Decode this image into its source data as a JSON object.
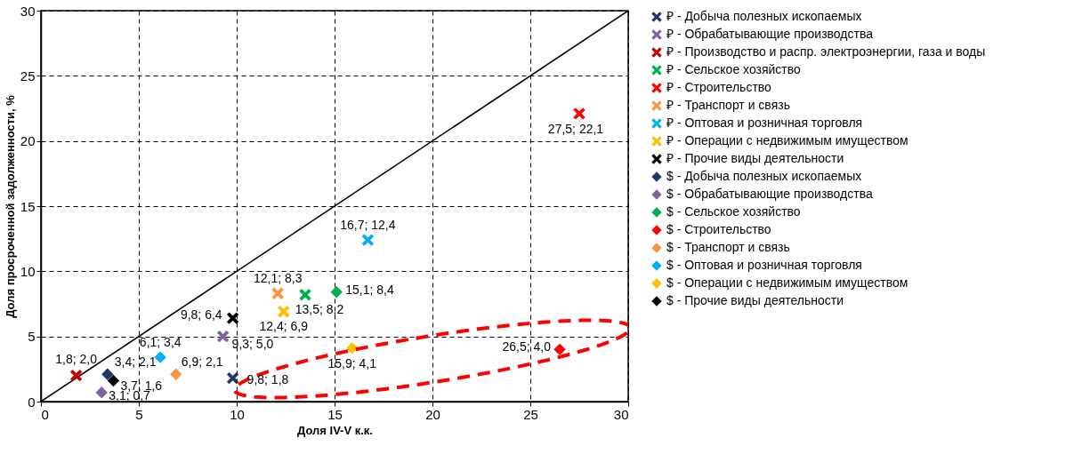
{
  "chart_data": {
    "type": "scatter",
    "xlabel": "Доля IV-V к.к.",
    "ylabel": "Доля просроченной задолженности, %",
    "xlim": [
      0,
      30
    ],
    "ylim": [
      0,
      30
    ],
    "xticks": [
      0,
      5,
      10,
      15,
      20,
      25,
      30
    ],
    "yticks": [
      0,
      5,
      10,
      15,
      20,
      25,
      30
    ],
    "grid": true,
    "legend": "right",
    "series": [
      {
        "type": "line",
        "color": "#000000",
        "line_style": "solid",
        "x": [
          0,
          30
        ],
        "values": [
          0,
          30
        ]
      },
      {
        "name": "₽ - Добыча полезных ископаемых",
        "color": "#1f3864",
        "marker": "cross",
        "x": [
          9.8
        ],
        "values": [
          1.8
        ],
        "value_labels": [
          "9,8; 1,8"
        ]
      },
      {
        "name": "₽ - Обрабатывающие производства",
        "color": "#8064a2",
        "marker": "cross",
        "x": [
          9.3
        ],
        "values": [
          5.0
        ],
        "value_labels": [
          "9,3; 5,0"
        ]
      },
      {
        "name": "₽ - Производство и распр. электроэнергии, газа и воды",
        "color": "#c00000",
        "marker": "cross",
        "x": [
          1.8
        ],
        "values": [
          2.0
        ],
        "value_labels": [
          "1,8; 2,0"
        ]
      },
      {
        "name": "₽ - Сельское хозяйство",
        "color": "#00b050",
        "marker": "cross",
        "x": [
          13.5
        ],
        "values": [
          8.2
        ],
        "value_labels": [
          "13,5; 8,2"
        ]
      },
      {
        "name": "₽ - Строительство",
        "color": "#ff0000",
        "marker": "cross",
        "x": [
          27.5
        ],
        "values": [
          22.1
        ],
        "value_labels": [
          "27,5; 22,1"
        ]
      },
      {
        "name": "₽ - Транспорт и связь",
        "color": "#f79646",
        "marker": "cross",
        "x": [
          12.1
        ],
        "values": [
          8.3
        ],
        "value_labels": [
          "12,1; 8,3"
        ]
      },
      {
        "name": "₽ - Оптовая и розничная торговля",
        "color": "#00b0f0",
        "marker": "cross",
        "x": [
          16.7
        ],
        "values": [
          12.4
        ],
        "value_labels": [
          "16,7; 12,4"
        ]
      },
      {
        "name": "₽ - Операции с недвижимым имуществом",
        "color": "#ffc000",
        "marker": "cross",
        "x": [
          12.4
        ],
        "values": [
          6.9
        ],
        "value_labels": [
          "12,4; 6,9"
        ]
      },
      {
        "name": "₽ - Прочие виды деятельности",
        "color": "#000000",
        "marker": "cross",
        "x": [
          9.8
        ],
        "values": [
          6.4
        ],
        "value_labels": [
          "9,8; 6,4"
        ]
      },
      {
        "name": "$ - Добыча полезных ископаемых",
        "color": "#1f3864",
        "marker": "diamond",
        "x": [
          3.4
        ],
        "values": [
          2.1
        ],
        "value_labels": [
          "3,4; 2,1"
        ]
      },
      {
        "name": "$ - Обрабатывающие производства",
        "color": "#8064a2",
        "marker": "diamond",
        "x": [
          3.1
        ],
        "values": [
          0.7
        ],
        "value_labels": [
          "3,1; 0,7"
        ]
      },
      {
        "name": "$ - Сельское хозяйство",
        "color": "#00b050",
        "marker": "diamond",
        "x": [
          15.1
        ],
        "values": [
          8.4
        ],
        "value_labels": [
          "15,1; 8,4"
        ]
      },
      {
        "name": "$ - Строительство",
        "color": "#ff0000",
        "marker": "diamond",
        "x": [
          26.5
        ],
        "values": [
          4.0
        ],
        "value_labels": [
          "26,5; 4,0"
        ]
      },
      {
        "name": "$ - Транспорт и связь",
        "color": "#f79646",
        "marker": "diamond",
        "x": [
          6.9
        ],
        "values": [
          2.1
        ],
        "value_labels": [
          "6,9; 2,1"
        ]
      },
      {
        "name": "$ - Оптовая и розничная торговля",
        "color": "#00b0f0",
        "marker": "diamond",
        "x": [
          6.1
        ],
        "values": [
          3.4
        ],
        "value_labels": [
          "6,1; 3,4"
        ]
      },
      {
        "name": "$ - Операции с недвижимым имуществом",
        "color": "#ffc000",
        "marker": "diamond",
        "x": [
          15.9
        ],
        "values": [
          4.1
        ],
        "value_labels": [
          "15,9; 4,1"
        ]
      },
      {
        "name": "$ - Прочие виды деятельности",
        "color": "#000000",
        "marker": "diamond",
        "x": [
          3.7
        ],
        "values": [
          1.6
        ],
        "value_labels": [
          "3,7; 1,6"
        ]
      }
    ]
  }
}
